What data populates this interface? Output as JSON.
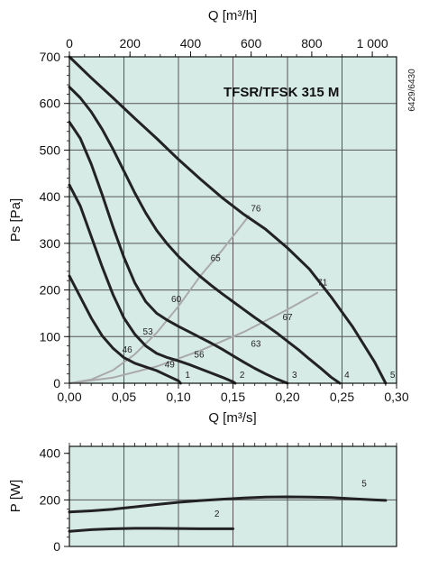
{
  "chart_data": [
    {
      "type": "line",
      "title": "TFSR/TFSK 315 M",
      "document_code": "6429/6430",
      "xlabel": "Q [m³/s]",
      "x2label": "Q [m³/h]",
      "ylabel": "Ps [Pa]",
      "xlim": [
        0,
        0.3
      ],
      "x2lim": [
        0,
        1080
      ],
      "ylim": [
        0,
        700
      ],
      "x_ticks": [
        "0,00",
        "0,05",
        "0,10",
        "0,15",
        "0,20",
        "0,25",
        "0,30"
      ],
      "x2_ticks": [
        "0",
        "200",
        "400",
        "600",
        "800",
        "1 000"
      ],
      "y_ticks": [
        "0",
        "100",
        "200",
        "300",
        "400",
        "500",
        "600",
        "700"
      ],
      "grid": true,
      "background": "#d7ebe6",
      "curve_color": "#222222",
      "efficiency_color": "#a9a9a9",
      "series": [
        {
          "name": "1",
          "x": [
            0,
            0.01,
            0.02,
            0.03,
            0.04,
            0.05,
            0.06,
            0.07,
            0.08,
            0.09,
            0.1,
            0.102
          ],
          "y": [
            230,
            185,
            140,
            102,
            75,
            55,
            43,
            35,
            27,
            16,
            5,
            0
          ]
        },
        {
          "name": "2",
          "x": [
            0,
            0.01,
            0.02,
            0.03,
            0.04,
            0.05,
            0.06,
            0.07,
            0.08,
            0.09,
            0.1,
            0.11,
            0.12,
            0.13,
            0.14,
            0.15,
            0.152
          ],
          "y": [
            425,
            380,
            315,
            250,
            190,
            140,
            105,
            80,
            64,
            55,
            48,
            40,
            31,
            22,
            13,
            3,
            0
          ]
        },
        {
          "name": "3",
          "x": [
            0,
            0.01,
            0.02,
            0.03,
            0.04,
            0.05,
            0.06,
            0.07,
            0.08,
            0.09,
            0.1,
            0.11,
            0.12,
            0.13,
            0.14,
            0.15,
            0.16,
            0.17,
            0.18,
            0.19,
            0.2
          ],
          "y": [
            560,
            525,
            470,
            405,
            335,
            270,
            215,
            175,
            150,
            135,
            122,
            110,
            98,
            86,
            73,
            59,
            45,
            32,
            20,
            9,
            0
          ]
        },
        {
          "name": "4",
          "x": [
            0,
            0.01,
            0.02,
            0.03,
            0.04,
            0.05,
            0.06,
            0.07,
            0.08,
            0.09,
            0.1,
            0.11,
            0.12,
            0.13,
            0.14,
            0.15,
            0.16,
            0.17,
            0.18,
            0.19,
            0.2,
            0.21,
            0.22,
            0.23,
            0.24,
            0.248
          ],
          "y": [
            635,
            612,
            582,
            545,
            502,
            455,
            408,
            365,
            328,
            298,
            272,
            250,
            229,
            210,
            192,
            175,
            158,
            141,
            125,
            108,
            90,
            72,
            52,
            33,
            13,
            0
          ]
        },
        {
          "name": "5",
          "x": [
            0,
            0.02,
            0.04,
            0.06,
            0.08,
            0.1,
            0.12,
            0.14,
            0.16,
            0.18,
            0.2,
            0.22,
            0.24,
            0.26,
            0.28,
            0.29
          ],
          "y": [
            700,
            655,
            612,
            568,
            525,
            480,
            438,
            398,
            362,
            330,
            290,
            245,
            185,
            120,
            45,
            0
          ]
        }
      ],
      "efficiency_lines": [
        {
          "name": "76",
          "x": [
            0,
            0.02,
            0.04,
            0.06,
            0.08,
            0.1,
            0.12,
            0.14,
            0.165
          ],
          "y": [
            0,
            8,
            28,
            62,
            108,
            165,
            230,
            285,
            360
          ]
        },
        {
          "name": "71",
          "x": [
            0,
            0.04,
            0.08,
            0.12,
            0.16,
            0.2,
            0.228
          ],
          "y": [
            0,
            12,
            36,
            70,
            110,
            158,
            195
          ]
        }
      ],
      "efficiency_labels": [
        {
          "text": "76",
          "x": 0.171,
          "y": 368
        },
        {
          "text": "71",
          "x": 0.232,
          "y": 210
        },
        {
          "text": "65",
          "x": 0.134,
          "y": 262
        },
        {
          "text": "67",
          "x": 0.2,
          "y": 135
        },
        {
          "text": "60",
          "x": 0.098,
          "y": 174
        },
        {
          "text": "63",
          "x": 0.171,
          "y": 78
        },
        {
          "text": "53",
          "x": 0.072,
          "y": 104
        },
        {
          "text": "56",
          "x": 0.119,
          "y": 55
        },
        {
          "text": "46",
          "x": 0.053,
          "y": 66
        },
        {
          "text": "49",
          "x": 0.092,
          "y": 34
        }
      ]
    },
    {
      "type": "line",
      "xlabel": "",
      "ylabel": "P [W]",
      "xlim": [
        0,
        0.3
      ],
      "ylim": [
        0,
        430
      ],
      "y_ticks": [
        "0",
        "200",
        "400"
      ],
      "grid": true,
      "series": [
        {
          "name": "2",
          "x": [
            0,
            0.02,
            0.04,
            0.06,
            0.08,
            0.1,
            0.12,
            0.14,
            0.15
          ],
          "y": [
            65,
            72,
            76,
            78,
            78,
            77,
            76,
            76,
            76
          ]
        },
        {
          "name": "5",
          "x": [
            0,
            0.02,
            0.04,
            0.06,
            0.08,
            0.1,
            0.12,
            0.14,
            0.16,
            0.18,
            0.2,
            0.22,
            0.24,
            0.26,
            0.28,
            0.29
          ],
          "y": [
            148,
            153,
            160,
            170,
            180,
            190,
            197,
            203,
            208,
            212,
            213,
            212,
            210,
            205,
            200,
            198
          ]
        }
      ]
    }
  ]
}
